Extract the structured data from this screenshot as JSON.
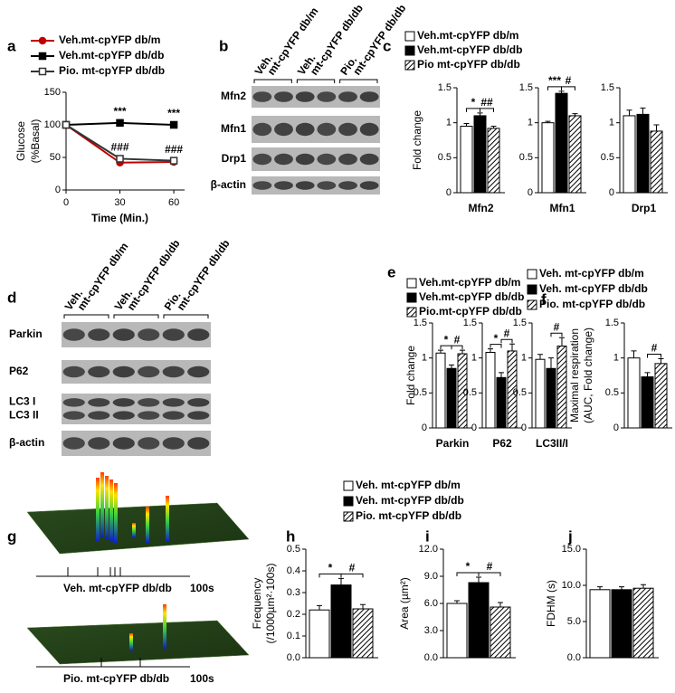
{
  "chart_data": [
    {
      "type": "line",
      "panel": "a",
      "xlabel": "Time (Min.)",
      "ylabel": [
        "Glucose",
        "(%Basal)"
      ],
      "x": [
        0,
        30,
        60
      ],
      "xlim": [
        0,
        66
      ],
      "xticks": [
        0,
        30,
        60
      ],
      "ylim": [
        0,
        150
      ],
      "yticks": [
        0,
        50,
        100,
        150
      ],
      "series": [
        {
          "name": "Veh.mt-cpYFP db/m",
          "color": "#c00000",
          "marker": "circle",
          "marker_fill": "#c00000",
          "values": [
            100,
            42,
            43
          ]
        },
        {
          "name": "Veh.mt-cpYFP db/db",
          "color": "#000000",
          "marker": "square",
          "marker_fill": "#000000",
          "values": [
            100,
            103,
            100
          ],
          "annotations": [
            null,
            "***",
            "***"
          ]
        },
        {
          "name": "Pio. mt-cpYFP db/db",
          "color": "#333333",
          "marker": "square",
          "marker_fill": "#ffffff",
          "values": [
            100,
            48,
            45
          ],
          "annotations": [
            null,
            "###",
            "###"
          ]
        }
      ]
    },
    {
      "type": "bar",
      "panel": "c",
      "ylabel": [
        "Fold change"
      ],
      "categories": [
        "Mfn2",
        "Mfn1",
        "Drp1"
      ],
      "ylim": [
        0,
        1.5
      ],
      "yticks": [
        0,
        0.5,
        1,
        1.5
      ],
      "series": [
        {
          "name": "Veh.mt-cpYFP db/m",
          "color": "#ffffff",
          "values": [
            0.95,
            1.0,
            1.1
          ],
          "errors": [
            0.04,
            0.02,
            0.08
          ]
        },
        {
          "name": "Veh.mt-cpYFP db/db",
          "color": "#000000",
          "values": [
            1.1,
            1.42,
            1.12
          ],
          "errors": [
            0.04,
            0.03,
            0.09
          ]
        },
        {
          "name": "Pio mt-cpYFP db/db",
          "color": "#000000",
          "hatch": true,
          "values": [
            0.92,
            1.1,
            0.88
          ],
          "errors": [
            0.03,
            0.03,
            0.09
          ]
        }
      ],
      "significance": [
        [
          "*",
          "##"
        ],
        [
          "***",
          "#"
        ],
        [
          null,
          null
        ]
      ]
    },
    {
      "type": "bar",
      "panel": "e",
      "ylabel": [
        "Fold change"
      ],
      "categories": [
        "Parkin",
        "P62",
        "LC3II/I"
      ],
      "ylim": [
        0,
        1.5
      ],
      "yticks": [
        0,
        0.5,
        1,
        1.5
      ],
      "series": [
        {
          "name": "Veh.mt-cpYFP db/m",
          "color": "#ffffff",
          "values": [
            1.07,
            1.08,
            0.98
          ],
          "errors": [
            0.04,
            0.05,
            0.07
          ]
        },
        {
          "name": "Veh.mt-cpYFP db/db",
          "color": "#000000",
          "values": [
            0.85,
            0.72,
            0.85
          ],
          "errors": [
            0.05,
            0.07,
            0.15
          ]
        },
        {
          "name": "Pio.mt-cpYFP db/db",
          "color": "#000000",
          "hatch": true,
          "values": [
            1.06,
            1.1,
            1.17
          ],
          "errors": [
            0.05,
            0.1,
            0.12
          ]
        }
      ],
      "significance": [
        [
          "*",
          "#"
        ],
        [
          "*",
          "#"
        ],
        [
          null,
          "#"
        ]
      ]
    },
    {
      "type": "bar",
      "panel": "f",
      "ylabel": [
        "Maximal respiration",
        "(AUC, Fold change)"
      ],
      "categories": [
        null
      ],
      "ylim": [
        0,
        1.5
      ],
      "yticks": [
        0,
        0.5,
        1,
        1.5
      ],
      "series": [
        {
          "name": "Veh. mt-cpYFP db/m",
          "color": "#ffffff",
          "values": [
            1.0
          ],
          "errors": [
            0.1
          ]
        },
        {
          "name": "Veh. mt-cpYFP db/db",
          "color": "#000000",
          "values": [
            0.73
          ],
          "errors": [
            0.06
          ]
        },
        {
          "name": "Pio. mt-cpYFP db/db",
          "color": "#000000",
          "hatch": true,
          "values": [
            0.92
          ],
          "errors": [
            0.07
          ]
        }
      ],
      "significance": [
        [
          null,
          "#"
        ]
      ]
    },
    {
      "type": "bar",
      "panel": "h",
      "ylabel": [
        "Frequency",
        "(/1000µm²·100s)"
      ],
      "categories": [
        null
      ],
      "ylim": [
        0,
        0.5
      ],
      "yticks": [
        {
          "value": 0,
          "label": "0.0"
        },
        0.1,
        0.2,
        0.3,
        0.4,
        0.5
      ],
      "series": [
        {
          "name": "Veh. mt-cpYFP db/m",
          "color": "#ffffff",
          "values": [
            0.22
          ],
          "errors": [
            0.02
          ]
        },
        {
          "name": "Veh. mt-cpYFP db/db",
          "color": "#000000",
          "values": [
            0.335
          ],
          "errors": [
            0.03
          ]
        },
        {
          "name": "Pio. mt-cpYFP db/db",
          "color": "#000000",
          "hatch": true,
          "values": [
            0.225
          ],
          "errors": [
            0.02
          ]
        }
      ],
      "significance": [
        [
          "*",
          "#"
        ]
      ]
    },
    {
      "type": "bar",
      "panel": "i",
      "ylabel": [
        "Area (µm²)"
      ],
      "categories": [
        null
      ],
      "ylim": [
        0,
        12
      ],
      "yticks": [
        {
          "value": 0,
          "label": "0.0"
        },
        {
          "value": 3,
          "label": "3.0"
        },
        {
          "value": 6,
          "label": "6.0"
        },
        {
          "value": 9,
          "label": "9.0"
        },
        {
          "value": 12,
          "label": "12.0"
        }
      ],
      "series": [
        {
          "color": "#ffffff",
          "values": [
            6.0
          ],
          "errors": [
            0.3
          ]
        },
        {
          "color": "#000000",
          "values": [
            8.3
          ],
          "errors": [
            0.6
          ]
        },
        {
          "color": "#000000",
          "hatch": true,
          "values": [
            5.6
          ],
          "errors": [
            0.5
          ]
        }
      ],
      "significance": [
        [
          "*",
          "#"
        ]
      ]
    },
    {
      "type": "bar",
      "panel": "j",
      "ylabel": [
        "FDHM (s)"
      ],
      "categories": [
        null
      ],
      "ylim": [
        0,
        15
      ],
      "yticks": [
        {
          "value": 0,
          "label": "0.0"
        },
        {
          "value": 5,
          "label": "5.0"
        },
        {
          "value": 10,
          "label": "10.0"
        },
        {
          "value": 15,
          "label": "15.0"
        }
      ],
      "series": [
        {
          "color": "#ffffff",
          "values": [
            9.4
          ],
          "errors": [
            0.4
          ]
        },
        {
          "color": "#000000",
          "values": [
            9.4
          ],
          "errors": [
            0.4
          ]
        },
        {
          "color": "#000000",
          "hatch": true,
          "values": [
            9.6
          ],
          "errors": [
            0.5
          ]
        }
      ]
    }
  ],
  "blots": [
    {
      "panel": "b",
      "headers": [
        [
          "Veh.",
          "mt-cpYFP db/m"
        ],
        [
          "Veh.",
          "mt-cpYFP db/db"
        ],
        [
          "Pio.",
          "mt-cpYFP db/db"
        ]
      ],
      "rows": [
        [
          "Mfn2"
        ],
        [
          "Mfn1"
        ],
        [
          "Drp1"
        ],
        [
          "β-actin"
        ]
      ]
    },
    {
      "panel": "d",
      "headers": [
        [
          "Veh.",
          "mt-cpYFP db/m"
        ],
        [
          "Veh.",
          "mt-cpYFP db/db"
        ],
        [
          "Pio.",
          "mt-cpYFP db/db"
        ]
      ],
      "rows": [
        [
          "Parkin"
        ],
        [
          "P62"
        ],
        [
          "LC3 I",
          "LC3 II"
        ],
        [
          "β-actin"
        ]
      ]
    }
  ],
  "surfaces": {
    "panel": "g",
    "plots": [
      {
        "label": "Veh. mt-cpYFP db/db",
        "scale": "100s"
      },
      {
        "label": "Pio. mt-cpYFP db/db",
        "scale": "100s"
      }
    ]
  }
}
